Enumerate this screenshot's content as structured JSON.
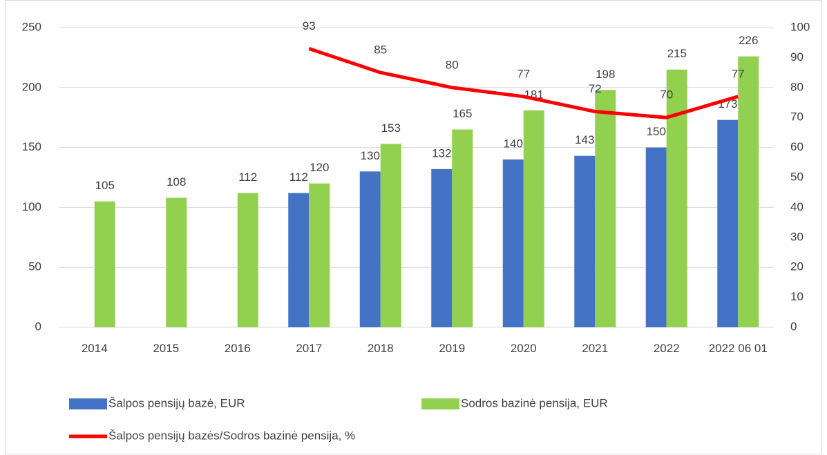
{
  "chart_data": {
    "type": "bar",
    "categories": [
      "2014",
      "2015",
      "2016",
      "2017",
      "2018",
      "2019",
      "2020",
      "2021",
      "2022",
      "2022 06 01"
    ],
    "series": [
      {
        "name": "Šalpos pensijų bazė, EUR",
        "color": "#4472c4",
        "type": "bar",
        "values": [
          null,
          null,
          null,
          112,
          130,
          132,
          140,
          143,
          150,
          173
        ]
      },
      {
        "name": "Sodros bazinė pensija, EUR",
        "color": "#92d050",
        "type": "bar",
        "values": [
          105,
          108,
          112,
          120,
          153,
          165,
          181,
          198,
          215,
          226
        ]
      },
      {
        "name": "Šalpos pensijų bazės/Sodros bazinė pensija, %",
        "color": "#ff0000",
        "type": "line",
        "axis": "y2",
        "values": [
          null,
          null,
          null,
          93,
          85,
          80,
          77,
          72,
          70,
          77
        ]
      }
    ],
    "ylim": [
      0,
      250
    ],
    "yticks": [
      0,
      50,
      100,
      150,
      200,
      250
    ],
    "y2lim": [
      0,
      100
    ],
    "y2ticks": [
      0,
      10,
      20,
      30,
      40,
      50,
      60,
      70,
      80,
      90,
      100
    ],
    "grid": true
  }
}
